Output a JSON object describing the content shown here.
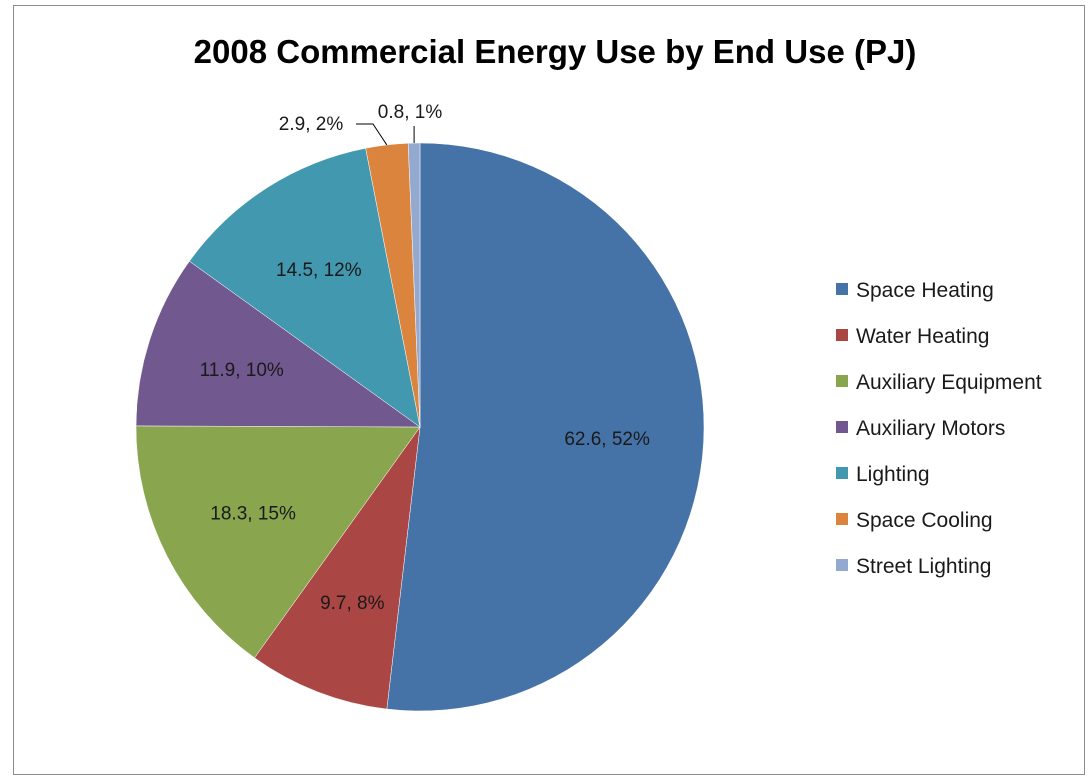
{
  "chart_data": {
    "type": "pie",
    "title": "2008 Commercial Energy Use by End Use (PJ)",
    "categories": [
      "Space Heating",
      "Water Heating",
      "Auxiliary Equipment",
      "Auxiliary Motors",
      "Lighting",
      "Space Cooling",
      "Street Lighting"
    ],
    "values": [
      62.6,
      9.7,
      18.3,
      11.9,
      14.5,
      2.9,
      0.8
    ],
    "percentages": [
      52,
      8,
      15,
      10,
      12,
      2,
      1
    ],
    "data_labels": [
      "62.6, 52%",
      "9.7, 8%",
      "18.3, 15%",
      "11.9, 10%",
      "14.5, 12%",
      "2.9, 2%",
      "0.8, 1%"
    ],
    "colors": [
      "#4572A7",
      "#AA4643",
      "#89A54E",
      "#71588F",
      "#4198AF",
      "#DB843D",
      "#93A9CF"
    ],
    "start_angle": "12 o'clock",
    "direction": "clockwise",
    "legend_position": "right"
  }
}
